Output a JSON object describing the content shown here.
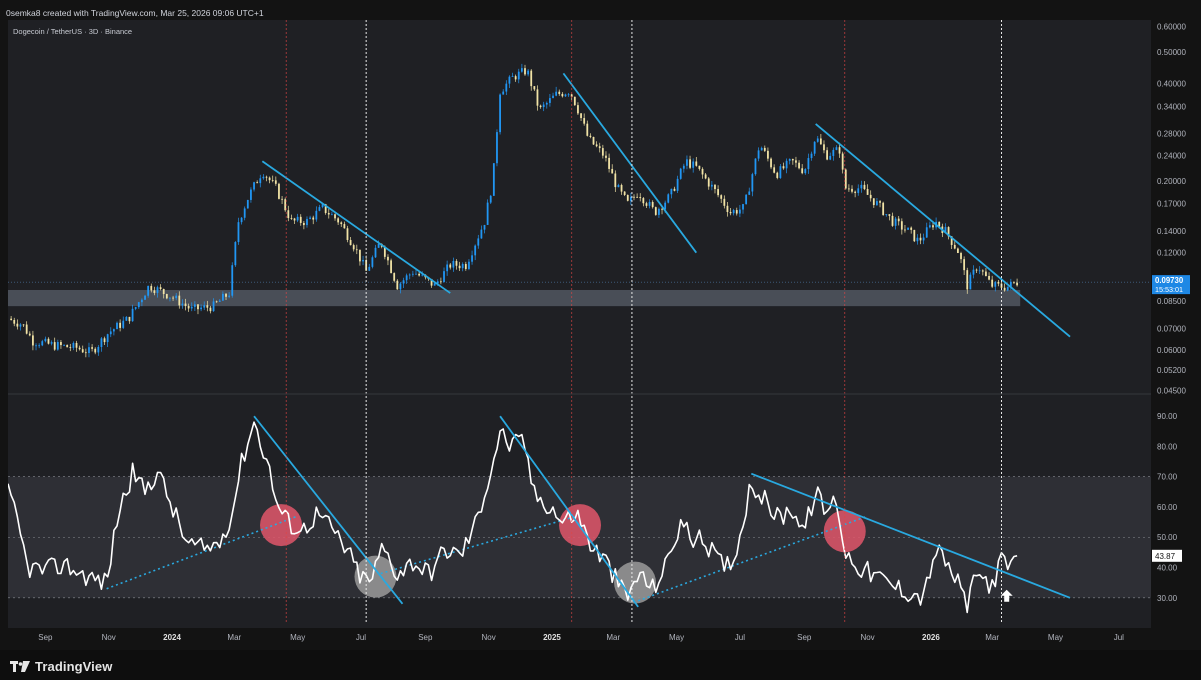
{
  "header": {
    "text": "0semka8 created with TradingView.com, Mar 25, 2026 09:06 UTC+1",
    "symbol_line": "Dogecoin / TetherUS · 3D · Binance"
  },
  "footer": {
    "brand": "TradingView"
  },
  "colors": {
    "background": "#1f2024",
    "up_candle": "#2196f3",
    "down_candle": "#f1e3a6",
    "trendline": "#29a9e0",
    "indicator_line": "#ffffff",
    "red_vline": "#e04545",
    "white_vline": "#e8e8e8",
    "red_circle": "#e0566a",
    "grey_circle": "#9a9a9a",
    "support_zone": "#6b7582"
  },
  "price_label": {
    "value": "0.09730",
    "countdown": "15:53:01"
  },
  "indicator_label": {
    "value": "43.87"
  },
  "chart_data": [
    {
      "type": "candlestick",
      "title": "Dogecoin / TetherUS · 3D · Binance",
      "y_scale": "log",
      "y_ticks": [
        "0.60000",
        "0.50000",
        "0.40000",
        "0.34000",
        "0.28000",
        "0.24000",
        "0.20000",
        "0.17000",
        "0.14000",
        "0.12000",
        "0.10000",
        "0.08500",
        "0.07000",
        "0.06000",
        "0.05200",
        "0.04500"
      ],
      "x_ticks": [
        "Sep",
        "Nov",
        "2024",
        "Mar",
        "May",
        "Jul",
        "Sep",
        "Nov",
        "2025",
        "Mar",
        "May",
        "Jul",
        "Sep",
        "Nov",
        "2026",
        "Mar",
        "May",
        "Jul"
      ],
      "x_range": [
        "2023-07-27",
        "2026-08-01"
      ],
      "last_price": 0.0973,
      "closes": [
        [
          "2023-07-27",
          0.075
        ],
        [
          "2023-08-10",
          0.072
        ],
        [
          "2023-08-20",
          0.064
        ],
        [
          "2023-09-10",
          0.062
        ],
        [
          "2023-10-01",
          0.061
        ],
        [
          "2023-10-15",
          0.059
        ],
        [
          "2023-11-01",
          0.068
        ],
        [
          "2023-11-20",
          0.075
        ],
        [
          "2023-12-10",
          0.095
        ],
        [
          "2023-12-31",
          0.088
        ],
        [
          "2024-01-20",
          0.08
        ],
        [
          "2024-02-10",
          0.082
        ],
        [
          "2024-02-25",
          0.09
        ],
        [
          "2024-03-05",
          0.15
        ],
        [
          "2024-03-15",
          0.18
        ],
        [
          "2024-03-28",
          0.215
        ],
        [
          "2024-04-10",
          0.19
        ],
        [
          "2024-04-25",
          0.15
        ],
        [
          "2024-05-10",
          0.15
        ],
        [
          "2024-05-25",
          0.165
        ],
        [
          "2024-06-10",
          0.15
        ],
        [
          "2024-06-25",
          0.125
        ],
        [
          "2024-07-06",
          0.105
        ],
        [
          "2024-07-20",
          0.13
        ],
        [
          "2024-08-05",
          0.095
        ],
        [
          "2024-08-20",
          0.105
        ],
        [
          "2024-09-10",
          0.095
        ],
        [
          "2024-09-25",
          0.11
        ],
        [
          "2024-10-10",
          0.11
        ],
        [
          "2024-10-28",
          0.15
        ],
        [
          "2024-11-05",
          0.2
        ],
        [
          "2024-11-12",
          0.38
        ],
        [
          "2024-11-25",
          0.42
        ],
        [
          "2024-12-08",
          0.44
        ],
        [
          "2024-12-20",
          0.33
        ],
        [
          "2025-01-05",
          0.37
        ],
        [
          "2025-01-18",
          0.38
        ],
        [
          "2025-01-25",
          0.34
        ],
        [
          "2025-02-05",
          0.27
        ],
        [
          "2025-02-20",
          0.24
        ],
        [
          "2025-03-05",
          0.19
        ],
        [
          "2025-03-15",
          0.17
        ],
        [
          "2025-03-25",
          0.185
        ],
        [
          "2025-04-10",
          0.16
        ],
        [
          "2025-04-25",
          0.18
        ],
        [
          "2025-05-10",
          0.23
        ],
        [
          "2025-05-20",
          0.22
        ],
        [
          "2025-06-05",
          0.19
        ],
        [
          "2025-06-22",
          0.16
        ],
        [
          "2025-07-05",
          0.165
        ],
        [
          "2025-07-20",
          0.26
        ],
        [
          "2025-08-05",
          0.21
        ],
        [
          "2025-08-20",
          0.23
        ],
        [
          "2025-09-01",
          0.215
        ],
        [
          "2025-09-12",
          0.275
        ],
        [
          "2025-09-22",
          0.24
        ],
        [
          "2025-10-05",
          0.25
        ],
        [
          "2025-10-10",
          0.19
        ],
        [
          "2025-10-25",
          0.19
        ],
        [
          "2025-11-10",
          0.17
        ],
        [
          "2025-11-25",
          0.15
        ],
        [
          "2025-12-10",
          0.14
        ],
        [
          "2025-12-20",
          0.13
        ],
        [
          "2026-01-05",
          0.15
        ],
        [
          "2026-01-15",
          0.14
        ],
        [
          "2026-01-28",
          0.12
        ],
        [
          "2026-02-05",
          0.095
        ],
        [
          "2026-02-15",
          0.11
        ],
        [
          "2026-02-28",
          0.095
        ],
        [
          "2026-03-15",
          0.094
        ],
        [
          "2026-03-25",
          0.0973
        ]
      ],
      "support_zone": [
        0.082,
        0.092
      ],
      "trendlines": [
        {
          "from": [
            "2024-03-28",
            0.23
          ],
          "to": [
            "2024-09-25",
            0.09
          ]
        },
        {
          "from": [
            "2025-01-12",
            0.43
          ],
          "to": [
            "2025-05-20",
            0.12
          ]
        },
        {
          "from": [
            "2025-09-12",
            0.3
          ],
          "to": [
            "2026-05-15",
            0.066
          ]
        }
      ]
    },
    {
      "type": "line",
      "y_ticks": [
        "90.00",
        "80.00",
        "70.00",
        "60.00",
        "50.00",
        "40.00",
        "30.00"
      ],
      "y_range": [
        22,
        96
      ],
      "band": [
        30,
        70
      ],
      "midline": 50,
      "last_value": 43.87,
      "values": [
        [
          "2023-07-27",
          65
        ],
        [
          "2023-08-05",
          55
        ],
        [
          "2023-08-15",
          40
        ],
        [
          "2023-09-01",
          39
        ],
        [
          "2023-09-20",
          41
        ],
        [
          "2023-10-05",
          38
        ],
        [
          "2023-10-20",
          36
        ],
        [
          "2023-10-30",
          35
        ],
        [
          "2023-11-10",
          58
        ],
        [
          "2023-11-25",
          72
        ],
        [
          "2023-12-05",
          65
        ],
        [
          "2023-12-18",
          72
        ],
        [
          "2024-01-01",
          60
        ],
        [
          "2024-01-15",
          48
        ],
        [
          "2024-02-01",
          46
        ],
        [
          "2024-02-15",
          48
        ],
        [
          "2024-02-28",
          58
        ],
        [
          "2024-03-06",
          72
        ],
        [
          "2024-03-14",
          82
        ],
        [
          "2024-03-20",
          88
        ],
        [
          "2024-04-01",
          76
        ],
        [
          "2024-04-12",
          60
        ],
        [
          "2024-04-22",
          55
        ],
        [
          "2024-05-05",
          52
        ],
        [
          "2024-05-20",
          58
        ],
        [
          "2024-06-05",
          52
        ],
        [
          "2024-06-20",
          44
        ],
        [
          "2024-07-01",
          37
        ],
        [
          "2024-07-10",
          35
        ],
        [
          "2024-07-22",
          47
        ],
        [
          "2024-08-05",
          38
        ],
        [
          "2024-08-20",
          42
        ],
        [
          "2024-09-05",
          38
        ],
        [
          "2024-09-20",
          46
        ],
        [
          "2024-10-05",
          44
        ],
        [
          "2024-10-20",
          55
        ],
        [
          "2024-11-03",
          72
        ],
        [
          "2024-11-12",
          85
        ],
        [
          "2024-11-22",
          80
        ],
        [
          "2024-12-05",
          82
        ],
        [
          "2024-12-15",
          64
        ],
        [
          "2025-01-01",
          60
        ],
        [
          "2025-01-10",
          55
        ],
        [
          "2025-01-25",
          58
        ],
        [
          "2025-02-08",
          47
        ],
        [
          "2025-02-22",
          42
        ],
        [
          "2025-03-05",
          35
        ],
        [
          "2025-03-15",
          30
        ],
        [
          "2025-03-25",
          38
        ],
        [
          "2025-04-08",
          33
        ],
        [
          "2025-04-20",
          40
        ],
        [
          "2025-05-05",
          55
        ],
        [
          "2025-05-15",
          50
        ],
        [
          "2025-05-30",
          48
        ],
        [
          "2025-06-15",
          40
        ],
        [
          "2025-06-28",
          45
        ],
        [
          "2025-07-05",
          58
        ],
        [
          "2025-07-12",
          68
        ],
        [
          "2025-07-25",
          62
        ],
        [
          "2025-08-08",
          56
        ],
        [
          "2025-08-20",
          60
        ],
        [
          "2025-09-01",
          52
        ],
        [
          "2025-09-12",
          65
        ],
        [
          "2025-09-22",
          58
        ],
        [
          "2025-10-02",
          63
        ],
        [
          "2025-10-10",
          45
        ],
        [
          "2025-10-25",
          40
        ],
        [
          "2025-11-10",
          37
        ],
        [
          "2025-11-25",
          34
        ],
        [
          "2025-12-10",
          32
        ],
        [
          "2025-12-25",
          30
        ],
        [
          "2026-01-05",
          46
        ],
        [
          "2026-01-15",
          42
        ],
        [
          "2026-01-28",
          34
        ],
        [
          "2026-02-05",
          28
        ],
        [
          "2026-02-15",
          38
        ],
        [
          "2026-02-28",
          34
        ],
        [
          "2026-03-10",
          42
        ],
        [
          "2026-03-17",
          40
        ],
        [
          "2026-03-25",
          43.87
        ]
      ],
      "trendlines": [
        {
          "from": [
            "2024-03-20",
            90
          ],
          "to": [
            "2024-08-10",
            28
          ]
        },
        {
          "from": [
            "2024-11-12",
            90
          ],
          "to": [
            "2025-03-25",
            27
          ]
        },
        {
          "from": [
            "2025-07-12",
            71
          ],
          "to": [
            "2026-05-15",
            30
          ]
        }
      ],
      "dotted_trendlines": [
        {
          "from": [
            "2023-10-30",
            33
          ],
          "to": [
            "2024-05-01",
            57
          ]
        },
        {
          "from": [
            "2024-07-20",
            38
          ],
          "to": [
            "2025-01-25",
            57
          ]
        },
        {
          "from": [
            "2025-03-25",
            29
          ],
          "to": [
            "2025-11-01",
            57
          ]
        }
      ],
      "circles": [
        {
          "date": "2024-04-15",
          "value": 54,
          "color": "red"
        },
        {
          "date": "2024-07-15",
          "value": 37,
          "color": "grey"
        },
        {
          "date": "2025-01-28",
          "value": 54,
          "color": "red"
        },
        {
          "date": "2025-03-22",
          "value": 35,
          "color": "grey"
        },
        {
          "date": "2025-10-10",
          "value": 52,
          "color": "red"
        }
      ]
    }
  ],
  "vertical_lines": {
    "red": [
      "2024-04-20",
      "2025-01-20",
      "2025-10-10"
    ],
    "white": [
      "2024-07-06",
      "2025-03-19",
      "2026-03-10"
    ]
  }
}
